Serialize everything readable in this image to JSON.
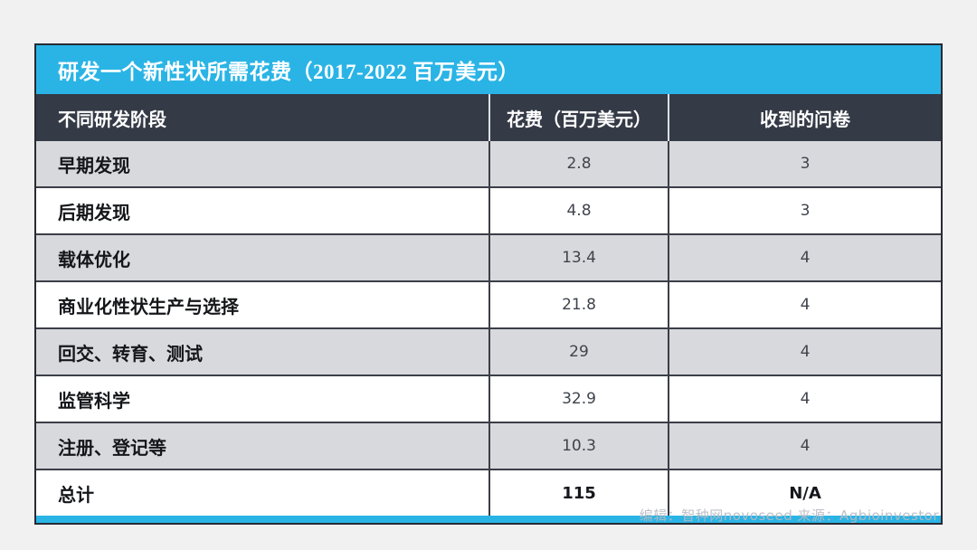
{
  "title": "研发一个新性状所需花费（2017-2022 百万美元）",
  "chart_data": {
    "type": "table",
    "title": "研发一个新性状所需花费（2017-2022 百万美元）",
    "columns": [
      "不同研发阶段",
      "花费（百万美元）",
      "收到的问卷"
    ],
    "rows": [
      [
        "早期发现",
        "2.8",
        "3"
      ],
      [
        "后期发现",
        "4.8",
        "3"
      ],
      [
        "载体优化",
        "13.4",
        "4"
      ],
      [
        "商业化性状生产与选择",
        "21.8",
        "4"
      ],
      [
        "回交、转育、测试",
        "29",
        "4"
      ],
      [
        "监管科学",
        "32.9",
        "4"
      ],
      [
        "注册、登记等",
        "10.3",
        "4"
      ],
      [
        "总计",
        "115",
        "N/A"
      ]
    ],
    "total_row_label": "总计",
    "total_cost": "115",
    "layout": "striped-rows, header dark, title bar cyan"
  },
  "footer": {
    "watermark": "编辑：智种网novoseed  来源：Agbioinvestor"
  },
  "colors": {
    "accent_cyan": "#2ab4e6",
    "header_navy": "#343a46",
    "row_gray": "#d8d9dc",
    "row_white": "#ffffff",
    "grid_line": "#3a3e47",
    "page_background": "#f1f1f2"
  }
}
